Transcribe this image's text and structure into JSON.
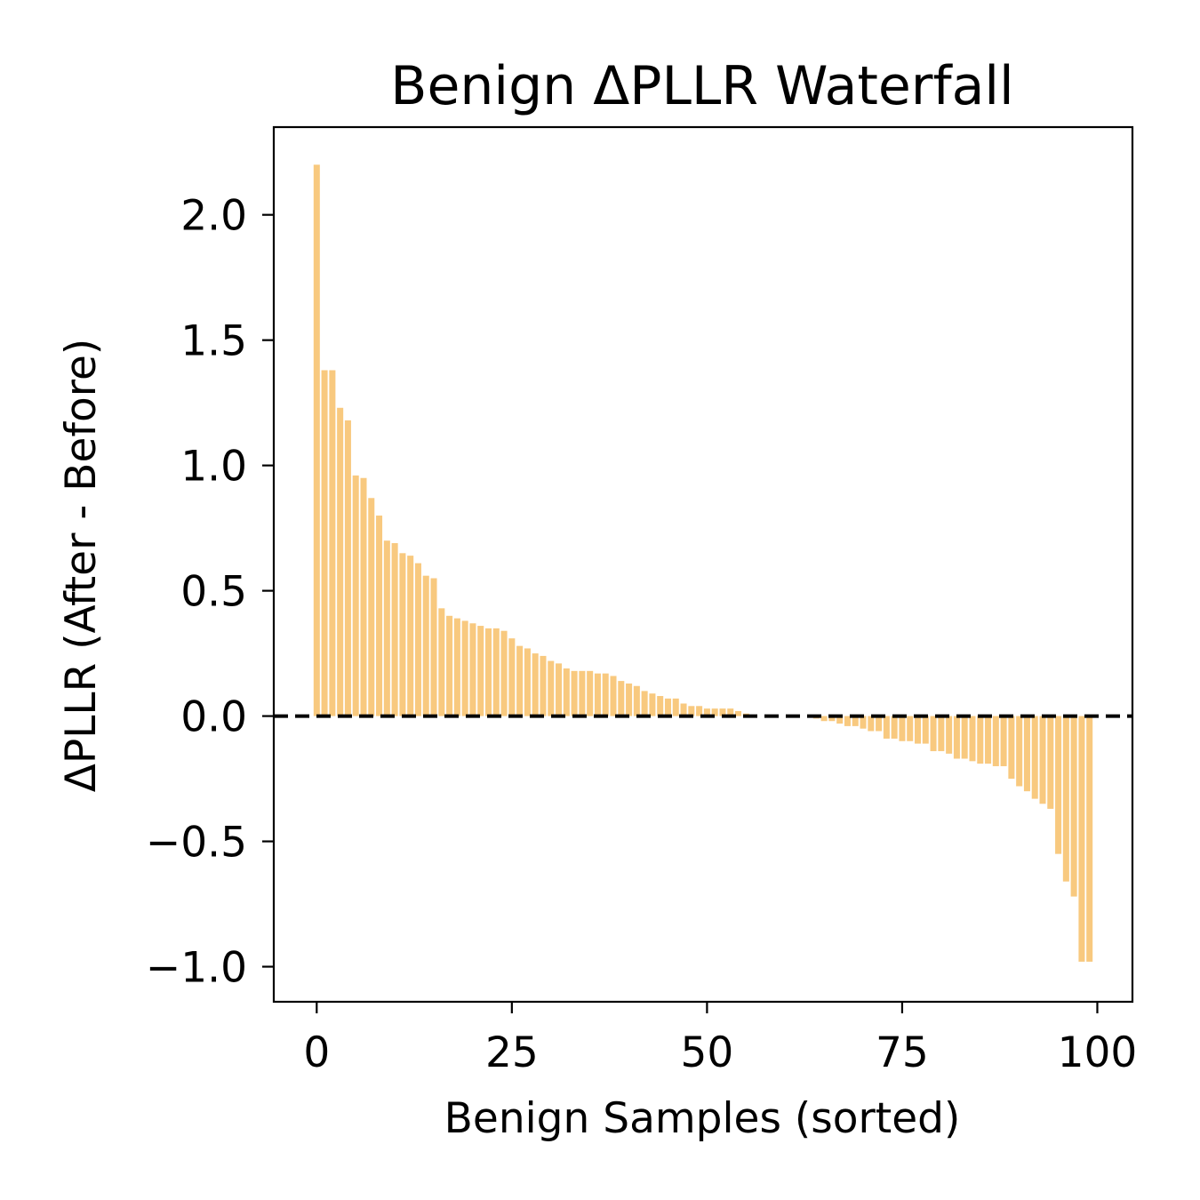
{
  "chart_data": {
    "type": "bar",
    "title": "Benign ΔPLLR Waterfall",
    "xlabel": "Benign Samples (sorted)",
    "ylabel": "ΔPLLR (After - Before)",
    "xlim": [
      -5.5,
      104.5
    ],
    "ylim": [
      -1.14,
      2.35
    ],
    "xticks": [
      0,
      25,
      50,
      75,
      100
    ],
    "xtick_labels": [
      "0",
      "25",
      "50",
      "75",
      "100"
    ],
    "yticks": [
      2.0,
      1.5,
      1.0,
      0.5,
      0.0,
      -0.5,
      -1.0
    ],
    "ytick_labels": [
      "2.0",
      "1.5",
      "1.0",
      "0.5",
      "0.0",
      "−0.5",
      "−1.0"
    ],
    "bar_color": "#f8c97f",
    "reference_line": {
      "y": 0,
      "style": "dashed",
      "color": "#000000"
    },
    "grid": false,
    "legend": false,
    "x": [
      0,
      1,
      2,
      3,
      4,
      5,
      6,
      7,
      8,
      9,
      10,
      11,
      12,
      13,
      14,
      15,
      16,
      17,
      18,
      19,
      20,
      21,
      22,
      23,
      24,
      25,
      26,
      27,
      28,
      29,
      30,
      31,
      32,
      33,
      34,
      35,
      36,
      37,
      38,
      39,
      40,
      41,
      42,
      43,
      44,
      45,
      46,
      47,
      48,
      49,
      50,
      51,
      52,
      53,
      54,
      55,
      56,
      57,
      58,
      59,
      60,
      61,
      62,
      63,
      64,
      65,
      66,
      67,
      68,
      69,
      70,
      71,
      72,
      73,
      74,
      75,
      76,
      77,
      78,
      79,
      80,
      81,
      82,
      83,
      84,
      85,
      86,
      87,
      88,
      89,
      90,
      91,
      92,
      93,
      94,
      95,
      96,
      97,
      98,
      99
    ],
    "values": [
      2.2,
      1.38,
      1.38,
      1.23,
      1.18,
      0.96,
      0.95,
      0.87,
      0.8,
      0.7,
      0.69,
      0.65,
      0.64,
      0.61,
      0.56,
      0.55,
      0.43,
      0.4,
      0.39,
      0.38,
      0.37,
      0.36,
      0.35,
      0.35,
      0.34,
      0.31,
      0.28,
      0.27,
      0.25,
      0.24,
      0.22,
      0.21,
      0.19,
      0.18,
      0.18,
      0.18,
      0.17,
      0.17,
      0.16,
      0.14,
      0.13,
      0.12,
      0.1,
      0.09,
      0.08,
      0.07,
      0.07,
      0.05,
      0.04,
      0.04,
      0.03,
      0.03,
      0.03,
      0.03,
      0.02,
      0.01,
      0.0,
      0.0,
      0.0,
      0.0,
      0.0,
      0.0,
      0.0,
      0.0,
      -0.01,
      -0.02,
      -0.02,
      -0.03,
      -0.04,
      -0.04,
      -0.05,
      -0.06,
      -0.06,
      -0.09,
      -0.09,
      -0.1,
      -0.1,
      -0.11,
      -0.11,
      -0.14,
      -0.14,
      -0.15,
      -0.17,
      -0.17,
      -0.18,
      -0.19,
      -0.19,
      -0.2,
      -0.2,
      -0.25,
      -0.28,
      -0.3,
      -0.33,
      -0.35,
      -0.37,
      -0.55,
      -0.66,
      -0.72,
      -0.98,
      -0.98
    ]
  }
}
